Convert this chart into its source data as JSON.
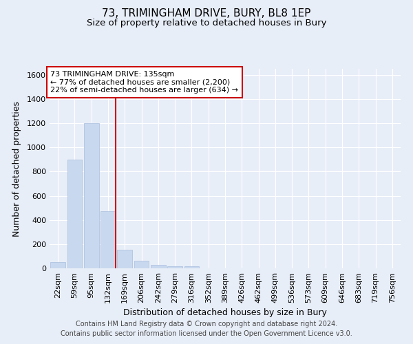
{
  "title": "73, TRIMINGHAM DRIVE, BURY, BL8 1EP",
  "subtitle": "Size of property relative to detached houses in Bury",
  "xlabel": "Distribution of detached houses by size in Bury",
  "ylabel": "Number of detached properties",
  "footer_line1": "Contains HM Land Registry data © Crown copyright and database right 2024.",
  "footer_line2": "Contains public sector information licensed under the Open Government Licence v3.0.",
  "bar_labels": [
    "22sqm",
    "59sqm",
    "95sqm",
    "132sqm",
    "169sqm",
    "206sqm",
    "242sqm",
    "279sqm",
    "316sqm",
    "352sqm",
    "389sqm",
    "426sqm",
    "462sqm",
    "499sqm",
    "536sqm",
    "573sqm",
    "609sqm",
    "646sqm",
    "683sqm",
    "719sqm",
    "756sqm"
  ],
  "bar_values": [
    50,
    900,
    1200,
    470,
    155,
    60,
    30,
    15,
    15,
    0,
    0,
    0,
    0,
    0,
    0,
    0,
    0,
    0,
    0,
    0,
    0
  ],
  "bar_color": "#c8d8ee",
  "bar_edge_color": "#a8bedd",
  "ylim": [
    0,
    1650
  ],
  "yticks": [
    0,
    200,
    400,
    600,
    800,
    1000,
    1200,
    1400,
    1600
  ],
  "vline_color": "#cc0000",
  "vline_bar_index": 3,
  "annotation_text": "73 TRIMINGHAM DRIVE: 135sqm\n← 77% of detached houses are smaller (2,200)\n22% of semi-detached houses are larger (634) →",
  "annotation_box_color": "#ffffff",
  "annotation_border_color": "#cc0000",
  "bg_color": "#e8eef8",
  "plot_bg_color": "#e8eef8",
  "grid_color": "#ffffff",
  "title_fontsize": 11,
  "subtitle_fontsize": 9.5,
  "label_fontsize": 9,
  "tick_fontsize": 8,
  "annotation_fontsize": 8,
  "footer_fontsize": 7
}
